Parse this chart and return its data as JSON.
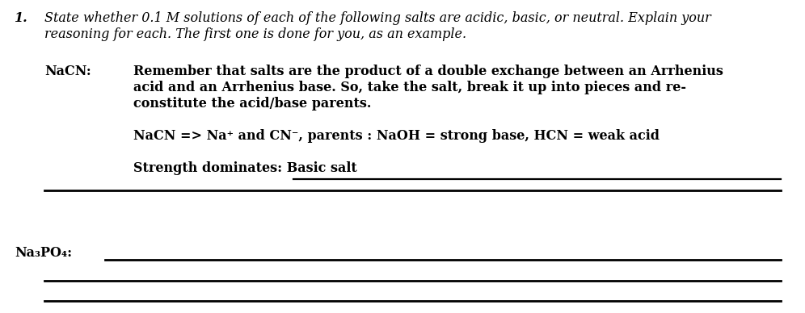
{
  "bg_color": "#ffffff",
  "fig_width": 9.96,
  "fig_height": 3.88,
  "dpi": 100,
  "question_number": "1.",
  "question_text_line1": "State whether 0.1 M solutions of each of the following salts are acidic, basic, or neutral. Explain your",
  "question_text_line2": "reasoning for each. The first one is done for you, as an example.",
  "nacn_label": "NaCN:",
  "nacn_bold_line1": "Remember that salts are the product of a double exchange between an Arrhenius",
  "nacn_bold_line2": "acid and an Arrhenius base. So, take the salt, break it up into pieces and re-",
  "nacn_bold_line3": "constitute the acid/base parents.",
  "nacn_equation": "NaCN => Na⁺ and CN⁻, parents : NaOH = strong base, HCN = weak acid",
  "nacn_conclusion": "Strength dominates: Basic salt",
  "na3po4_label": "Na₃PO₄:"
}
